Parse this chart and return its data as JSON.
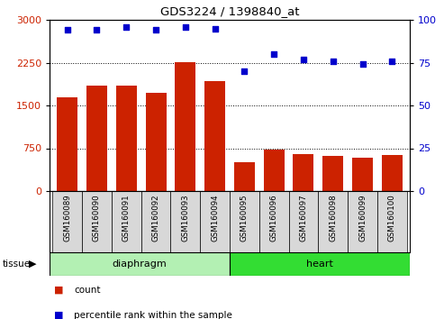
{
  "title": "GDS3224 / 1398840_at",
  "samples": [
    "GSM160089",
    "GSM160090",
    "GSM160091",
    "GSM160092",
    "GSM160093",
    "GSM160094",
    "GSM160095",
    "GSM160096",
    "GSM160097",
    "GSM160098",
    "GSM160099",
    "GSM160100"
  ],
  "counts": [
    1640,
    1840,
    1840,
    1720,
    2260,
    1920,
    510,
    730,
    640,
    620,
    590,
    630
  ],
  "percentiles": [
    94,
    94,
    96,
    94,
    96,
    95,
    70,
    80,
    77,
    76,
    74,
    76
  ],
  "tissue_groups": [
    {
      "label": "diaphragm",
      "start": 0,
      "end": 6,
      "color": "#b3f0b3"
    },
    {
      "label": "heart",
      "start": 6,
      "end": 12,
      "color": "#33dd33"
    }
  ],
  "bar_color": "#cc2200",
  "scatter_color": "#0000cc",
  "left_ylim": [
    0,
    3000
  ],
  "right_ylim": [
    0,
    100
  ],
  "left_yticks": [
    0,
    750,
    1500,
    2250,
    3000
  ],
  "right_yticks": [
    0,
    25,
    50,
    75,
    100
  ],
  "bg_color": "#ffffff",
  "xtick_bg": "#d8d8d8",
  "legend_count_color": "#cc2200",
  "legend_pct_color": "#0000cc"
}
